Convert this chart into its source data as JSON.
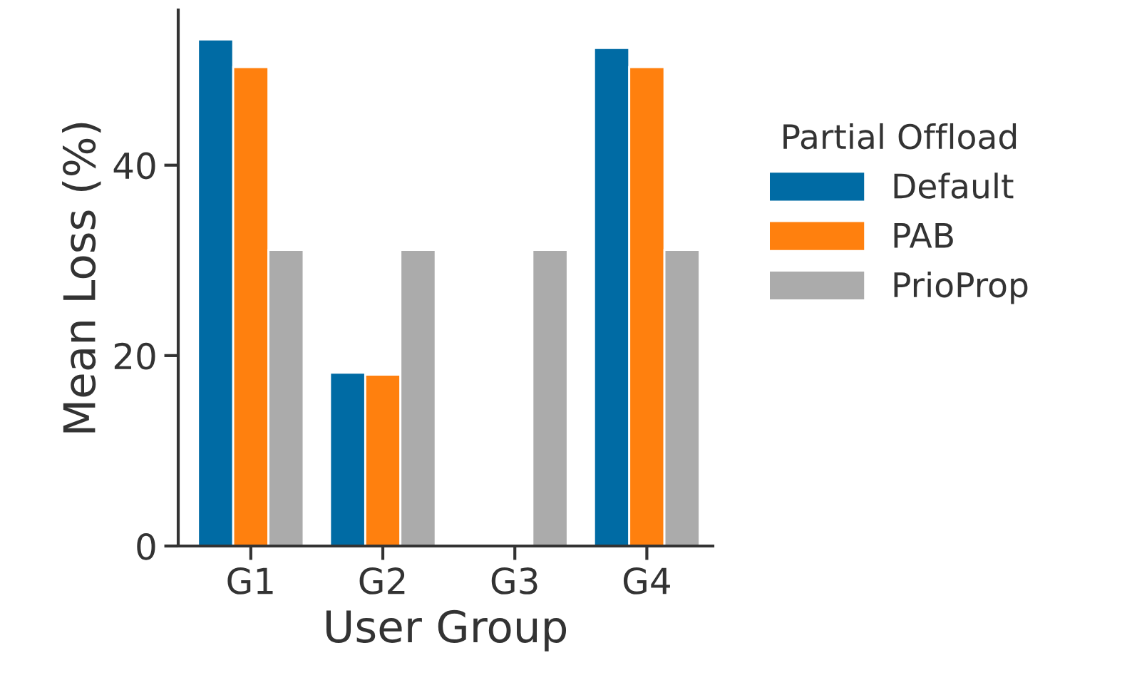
{
  "chart_data": {
    "type": "bar",
    "xlabel": "User Group",
    "ylabel": "Mean Loss (%)",
    "legend_title": "Partial Offload",
    "categories": [
      "G1",
      "G2",
      "G3",
      "G4"
    ],
    "series": [
      {
        "name": "Default",
        "color": "#006ba4",
        "values": [
          53.2,
          18.2,
          null,
          52.3
        ]
      },
      {
        "name": "PAB",
        "color": "#ff800e",
        "values": [
          50.3,
          18.0,
          null,
          50.3
        ]
      },
      {
        "name": "PrioProp",
        "color": "#ababab",
        "values": [
          31.1,
          31.1,
          31.1,
          31.1
        ]
      }
    ],
    "ylim": [
      0,
      56.3
    ],
    "yticks": [
      0,
      20,
      40
    ],
    "grid": false,
    "legend": "right"
  }
}
